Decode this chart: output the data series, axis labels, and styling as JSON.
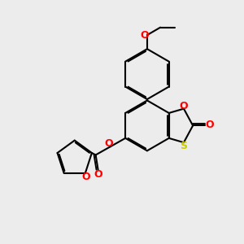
{
  "bg_color": "#ececec",
  "bond_color": "#000000",
  "o_color": "#ff0000",
  "s_color": "#cccc00",
  "line_width": 1.5,
  "dbo": 0.055,
  "font_size": 9,
  "fig_bg": "#ececec",
  "xlim": [
    0,
    10
  ],
  "ylim": [
    0,
    10
  ]
}
